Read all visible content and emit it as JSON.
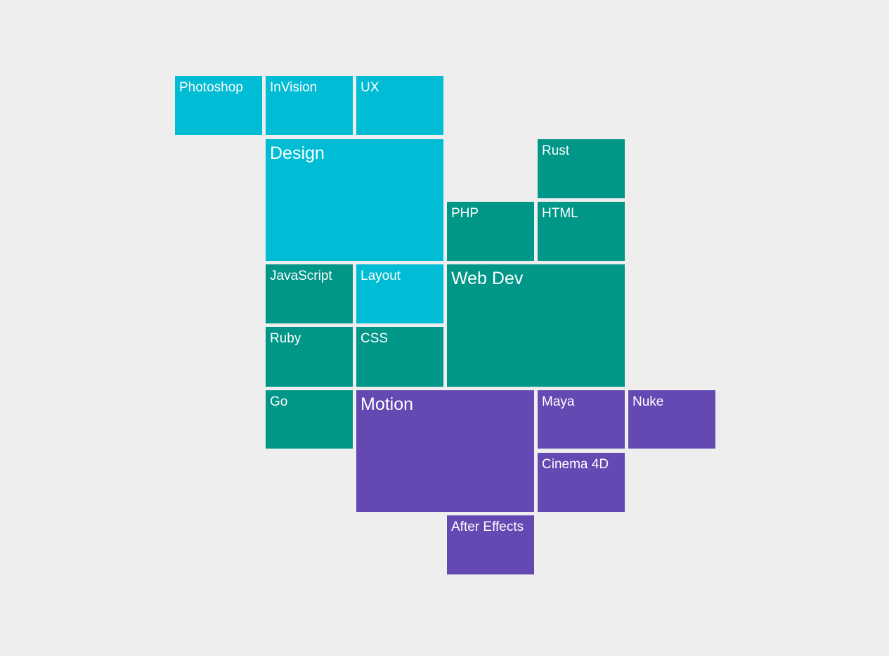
{
  "colors": {
    "background": "#eeeeee",
    "design": "#00bcd4",
    "web_dev": "#009688",
    "motion": "#6449b3",
    "text": "#ffffff"
  },
  "groups": {
    "design": {
      "label": "Design",
      "items": {
        "photoshop": "Photoshop",
        "invision": "InVision",
        "ux": "UX",
        "layout": "Layout"
      }
    },
    "web_dev": {
      "label": "Web Dev",
      "items": {
        "rust": "Rust",
        "php": "PHP",
        "html": "HTML",
        "javascript": "JavaScript",
        "ruby": "Ruby",
        "css": "CSS",
        "go": "Go"
      }
    },
    "motion": {
      "label": "Motion",
      "items": {
        "maya": "Maya",
        "nuke": "Nuke",
        "cinema4d": "Cinema 4D",
        "after_effects": "After Effects"
      }
    }
  }
}
